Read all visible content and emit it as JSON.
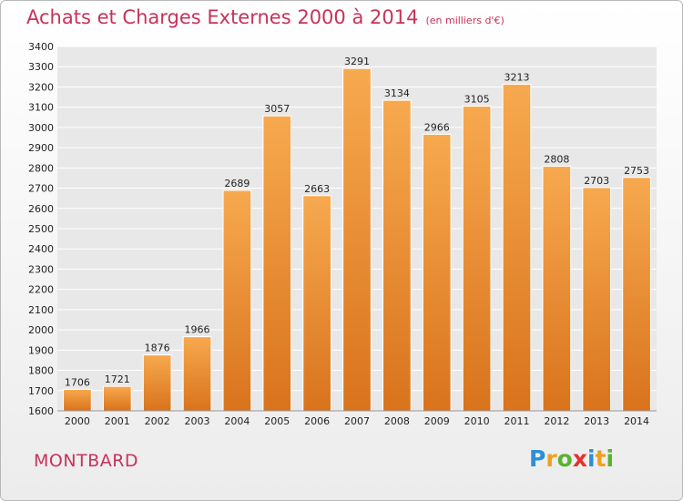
{
  "chart_data": {
    "type": "bar",
    "title": "Achats et Charges Externes 2000 à 2014",
    "subtitle": "(en milliers d'€)",
    "categories": [
      "2000",
      "2001",
      "2002",
      "2003",
      "2004",
      "2005",
      "2006",
      "2007",
      "2008",
      "2009",
      "2010",
      "2011",
      "2012",
      "2013",
      "2014"
    ],
    "values": [
      1706,
      1721,
      1876,
      1966,
      2689,
      3057,
      2663,
      3291,
      3134,
      2966,
      3105,
      3213,
      2808,
      2703,
      2753
    ],
    "ylim": [
      1600,
      3400
    ],
    "yticks": [
      1600,
      1700,
      1800,
      1900,
      2000,
      2100,
      2200,
      2300,
      2400,
      2500,
      2600,
      2700,
      2800,
      2900,
      3000,
      3100,
      3200,
      3300,
      3400
    ],
    "grid": true,
    "bar_color_top": "#f7a94f",
    "bar_color_bottom": "#d9731c"
  },
  "footer": {
    "city": "MONTBARD",
    "logo_letters": [
      {
        "ch": "P",
        "color": "#2f8fd6"
      },
      {
        "ch": "r",
        "color": "#f0a020"
      },
      {
        "ch": "o",
        "color": "#58b430"
      },
      {
        "ch": "x",
        "color": "#e8302c"
      },
      {
        "ch": "i",
        "color": "#2f8fd6"
      },
      {
        "ch": "t",
        "color": "#f0a020"
      },
      {
        "ch": "i",
        "color": "#58b430"
      }
    ]
  }
}
